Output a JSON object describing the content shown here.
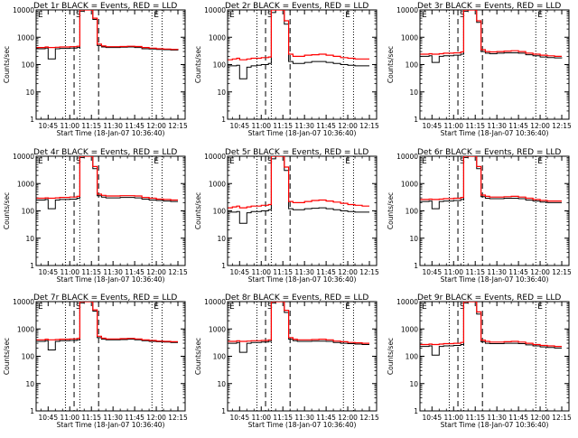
{
  "figure": {
    "ylabel": "Counts/sec",
    "xlabel": "Start Time (18-Jan-07 10:36:40)",
    "x_ticks": [
      "10:45",
      "11:00",
      "11:15",
      "11:30",
      "11:45",
      "12:00",
      "12:15"
    ],
    "y_ticks": [
      "1",
      "10",
      "100",
      "1000",
      "10000"
    ],
    "marker_labels": [
      "S",
      "E"
    ],
    "colors": {
      "events": "#000000",
      "lld": "#ff0000"
    }
  },
  "chart_data": [
    {
      "type": "line",
      "title": "Det 1r BLACK = Events, RED = LLD",
      "xlabel": "Start Time (18-Jan-07 10:36:40)",
      "ylabel": "Counts/sec",
      "ylim": [
        1,
        10000
      ],
      "log_y": true,
      "x": [
        "10:37",
        "10:40",
        "10:43",
        "10:45",
        "10:47",
        "10:50",
        "10:53",
        "10:57",
        "11:00",
        "11:02",
        "11:05",
        "11:07",
        "11:10",
        "11:13",
        "11:16",
        "11:19",
        "11:22",
        "11:25",
        "11:30",
        "11:35",
        "11:40",
        "11:45",
        "11:50",
        "11:55",
        "12:00",
        "12:05",
        "12:10",
        "12:15"
      ],
      "series": [
        {
          "name": "Events",
          "values": [
            380,
            380,
            400,
            160,
            160,
            380,
            390,
            390,
            400,
            400,
            420,
            9000,
            10000,
            10000,
            4500,
            500,
            440,
            420,
            420,
            430,
            440,
            420,
            380,
            370,
            360,
            350,
            340,
            330
          ]
        },
        {
          "name": "LLD",
          "values": [
            420,
            420,
            440,
            420,
            420,
            430,
            440,
            440,
            450,
            450,
            470,
            10000,
            10000,
            10000,
            5000,
            560,
            480,
            450,
            450,
            460,
            470,
            460,
            420,
            400,
            380,
            370,
            360,
            350
          ]
        }
      ],
      "vlines_dotted": [
        "10:57",
        "11:07",
        "11:57",
        "12:04"
      ],
      "vlines_dashed": [
        "11:03",
        "11:20"
      ]
    },
    {
      "type": "line",
      "title": "Det 2r BLACK = Events, RED = LLD",
      "xlabel": "Start Time (18-Jan-07 10:36:40)",
      "ylabel": "Counts/sec",
      "ylim": [
        1,
        10000
      ],
      "log_y": true,
      "x": [
        "10:37",
        "10:40",
        "10:43",
        "10:45",
        "10:47",
        "10:50",
        "10:53",
        "10:57",
        "11:00",
        "11:02",
        "11:05",
        "11:07",
        "11:10",
        "11:13",
        "11:16",
        "11:19",
        "11:22",
        "11:25",
        "11:30",
        "11:35",
        "11:40",
        "11:45",
        "11:50",
        "11:55",
        "12:00",
        "12:05",
        "12:10",
        "12:15"
      ],
      "series": [
        {
          "name": "Events",
          "values": [
            90,
            90,
            95,
            30,
            30,
            80,
            90,
            95,
            100,
            100,
            110,
            8000,
            10000,
            10000,
            3000,
            130,
            110,
            110,
            120,
            130,
            130,
            120,
            110,
            100,
            95,
            90,
            90,
            90
          ]
        },
        {
          "name": "LLD",
          "values": [
            150,
            160,
            170,
            150,
            150,
            160,
            170,
            170,
            180,
            180,
            190,
            10000,
            10000,
            10000,
            4000,
            240,
            200,
            200,
            220,
            230,
            240,
            220,
            200,
            180,
            170,
            160,
            160,
            160
          ]
        }
      ],
      "vlines_dotted": [
        "10:57",
        "11:07",
        "11:57",
        "12:04"
      ],
      "vlines_dashed": [
        "11:03",
        "11:20"
      ]
    },
    {
      "type": "line",
      "title": "Det 3r BLACK = Events, RED = LLD",
      "xlabel": "Start Time (18-Jan-07 10:36:40)",
      "ylabel": "Counts/sec",
      "ylim": [
        1,
        10000
      ],
      "log_y": true,
      "x": [
        "10:37",
        "10:40",
        "10:43",
        "10:45",
        "10:47",
        "10:50",
        "10:53",
        "10:57",
        "11:00",
        "11:02",
        "11:05",
        "11:07",
        "11:10",
        "11:13",
        "11:16",
        "11:19",
        "11:22",
        "11:25",
        "11:30",
        "11:35",
        "11:40",
        "11:45",
        "11:50",
        "11:55",
        "12:00",
        "12:05",
        "12:10",
        "12:15"
      ],
      "series": [
        {
          "name": "Events",
          "values": [
            200,
            200,
            210,
            120,
            120,
            200,
            210,
            210,
            220,
            220,
            240,
            9000,
            10000,
            10000,
            3500,
            300,
            260,
            250,
            260,
            270,
            270,
            260,
            230,
            210,
            190,
            180,
            175,
            170
          ]
        },
        {
          "name": "LLD",
          "values": [
            240,
            240,
            250,
            240,
            240,
            250,
            260,
            260,
            270,
            270,
            290,
            10000,
            10000,
            10000,
            4000,
            350,
            300,
            290,
            300,
            310,
            320,
            300,
            260,
            240,
            220,
            210,
            200,
            200
          ]
        }
      ],
      "vlines_dotted": [
        "10:57",
        "11:07",
        "11:57",
        "12:04"
      ],
      "vlines_dashed": [
        "11:03",
        "11:20"
      ]
    },
    {
      "type": "line",
      "title": "Det 4r BLACK = Events, RED = LLD",
      "xlabel": "Start Time (18-Jan-07 10:36:40)",
      "ylabel": "Counts/sec",
      "ylim": [
        1,
        10000
      ],
      "log_y": true,
      "x": [
        "10:37",
        "10:40",
        "10:43",
        "10:45",
        "10:47",
        "10:50",
        "10:53",
        "10:57",
        "11:00",
        "11:02",
        "11:05",
        "11:07",
        "11:10",
        "11:13",
        "11:16",
        "11:19",
        "11:22",
        "11:25",
        "11:30",
        "11:35",
        "11:40",
        "11:45",
        "11:50",
        "11:55",
        "12:00",
        "12:05",
        "12:10",
        "12:15"
      ],
      "series": [
        {
          "name": "Events",
          "values": [
            250,
            250,
            260,
            120,
            120,
            250,
            260,
            260,
            270,
            270,
            290,
            9000,
            10000,
            10000,
            3500,
            360,
            320,
            300,
            300,
            310,
            310,
            300,
            270,
            250,
            240,
            230,
            220,
            220
          ]
        },
        {
          "name": "LLD",
          "values": [
            290,
            290,
            300,
            290,
            290,
            300,
            310,
            310,
            320,
            320,
            340,
            10000,
            10000,
            10000,
            4200,
            410,
            370,
            350,
            350,
            360,
            360,
            350,
            310,
            290,
            270,
            260,
            250,
            250
          ]
        }
      ],
      "vlines_dotted": [
        "10:57",
        "11:07",
        "11:57",
        "12:04"
      ],
      "vlines_dashed": [
        "11:03",
        "11:20"
      ]
    },
    {
      "type": "line",
      "title": "Det 5r BLACK = Events, RED = LLD",
      "xlabel": "Start Time (18-Jan-07 10:36:40)",
      "ylabel": "Counts/sec",
      "ylim": [
        1,
        10000
      ],
      "log_y": true,
      "x": [
        "10:37",
        "10:40",
        "10:43",
        "10:45",
        "10:47",
        "10:50",
        "10:53",
        "10:57",
        "11:00",
        "11:02",
        "11:05",
        "11:07",
        "11:10",
        "11:13",
        "11:16",
        "11:19",
        "11:22",
        "11:25",
        "11:30",
        "11:35",
        "11:40",
        "11:45",
        "11:50",
        "11:55",
        "12:00",
        "12:05",
        "12:10",
        "12:15"
      ],
      "series": [
        {
          "name": "Events",
          "values": [
            90,
            90,
            95,
            35,
            35,
            85,
            95,
            95,
            100,
            100,
            110,
            8000,
            10000,
            10000,
            3000,
            120,
            110,
            110,
            120,
            125,
            130,
            120,
            110,
            100,
            95,
            90,
            90,
            90
          ]
        },
        {
          "name": "LLD",
          "values": [
            130,
            140,
            150,
            130,
            130,
            140,
            150,
            150,
            160,
            160,
            170,
            10000,
            10000,
            10000,
            4000,
            220,
            200,
            200,
            220,
            240,
            250,
            230,
            210,
            190,
            170,
            160,
            150,
            150
          ]
        }
      ],
      "vlines_dotted": [
        "10:57",
        "11:07",
        "11:57",
        "12:04"
      ],
      "vlines_dashed": [
        "11:03",
        "11:20"
      ]
    },
    {
      "type": "line",
      "title": "Det 6r BLACK = Events, RED = LLD",
      "xlabel": "Start Time (18-Jan-07 10:36:40)",
      "ylabel": "Counts/sec",
      "ylim": [
        1,
        10000
      ],
      "log_y": true,
      "x": [
        "10:37",
        "10:40",
        "10:43",
        "10:45",
        "10:47",
        "10:50",
        "10:53",
        "10:57",
        "11:00",
        "11:02",
        "11:05",
        "11:07",
        "11:10",
        "11:13",
        "11:16",
        "11:19",
        "11:22",
        "11:25",
        "11:30",
        "11:35",
        "11:40",
        "11:45",
        "11:50",
        "11:55",
        "12:00",
        "12:05",
        "12:10",
        "12:15"
      ],
      "series": [
        {
          "name": "Events",
          "values": [
            220,
            220,
            230,
            120,
            120,
            220,
            230,
            230,
            240,
            240,
            260,
            9000,
            10000,
            10000,
            3500,
            330,
            290,
            280,
            280,
            290,
            290,
            280,
            250,
            230,
            210,
            200,
            200,
            200
          ]
        },
        {
          "name": "LLD",
          "values": [
            260,
            260,
            270,
            260,
            260,
            270,
            280,
            280,
            290,
            290,
            310,
            10000,
            10000,
            10000,
            4200,
            380,
            340,
            320,
            320,
            330,
            340,
            320,
            290,
            260,
            240,
            230,
            230,
            230
          ]
        }
      ],
      "vlines_dotted": [
        "10:57",
        "11:07",
        "11:57",
        "12:04"
      ],
      "vlines_dashed": [
        "11:03",
        "11:20"
      ]
    },
    {
      "type": "line",
      "title": "Det 7r BLACK = Events, RED = LLD",
      "xlabel": "Start Time (18-Jan-07 10:36:40)",
      "ylabel": "Counts/sec",
      "ylim": [
        1,
        10000
      ],
      "log_y": true,
      "x": [
        "10:37",
        "10:40",
        "10:43",
        "10:45",
        "10:47",
        "10:50",
        "10:53",
        "10:57",
        "11:00",
        "11:02",
        "11:05",
        "11:07",
        "11:10",
        "11:13",
        "11:16",
        "11:19",
        "11:22",
        "11:25",
        "11:30",
        "11:35",
        "11:40",
        "11:45",
        "11:50",
        "11:55",
        "12:00",
        "12:05",
        "12:10",
        "12:15"
      ],
      "series": [
        {
          "name": "Events",
          "values": [
            350,
            350,
            370,
            170,
            170,
            350,
            370,
            370,
            380,
            380,
            400,
            9000,
            10000,
            10000,
            4500,
            480,
            420,
            400,
            400,
            410,
            420,
            400,
            370,
            350,
            340,
            330,
            320,
            320
          ]
        },
        {
          "name": "LLD",
          "values": [
            400,
            400,
            420,
            400,
            400,
            410,
            420,
            420,
            430,
            430,
            450,
            10000,
            10000,
            10000,
            5000,
            540,
            460,
            430,
            430,
            440,
            450,
            430,
            400,
            380,
            360,
            350,
            340,
            340
          ]
        }
      ],
      "vlines_dotted": [
        "10:57",
        "11:07",
        "11:57",
        "12:04"
      ],
      "vlines_dashed": [
        "11:03",
        "11:20"
      ]
    },
    {
      "type": "line",
      "title": "Det 8r BLACK = Events, RED = LLD",
      "xlabel": "Start Time (18-Jan-07 10:36:40)",
      "ylabel": "Counts/sec",
      "ylim": [
        1,
        10000
      ],
      "log_y": true,
      "x": [
        "10:37",
        "10:40",
        "10:43",
        "10:45",
        "10:47",
        "10:50",
        "10:53",
        "10:57",
        "11:00",
        "11:02",
        "11:05",
        "11:07",
        "11:10",
        "11:13",
        "11:16",
        "11:19",
        "11:22",
        "11:25",
        "11:30",
        "11:35",
        "11:40",
        "11:45",
        "11:50",
        "11:55",
        "12:00",
        "12:05",
        "12:10",
        "12:15"
      ],
      "series": [
        {
          "name": "Events",
          "values": [
            300,
            300,
            320,
            140,
            140,
            300,
            320,
            320,
            330,
            330,
            350,
            9000,
            10000,
            10000,
            4000,
            420,
            370,
            350,
            350,
            360,
            360,
            350,
            320,
            300,
            290,
            280,
            270,
            270
          ]
        },
        {
          "name": "LLD",
          "values": [
            350,
            350,
            370,
            350,
            350,
            360,
            370,
            370,
            380,
            380,
            400,
            10000,
            10000,
            10000,
            4800,
            480,
            420,
            400,
            400,
            410,
            420,
            400,
            360,
            340,
            320,
            310,
            300,
            300
          ]
        }
      ],
      "vlines_dotted": [
        "10:57",
        "11:07",
        "11:57",
        "12:04"
      ],
      "vlines_dashed": [
        "11:03",
        "11:20"
      ]
    },
    {
      "type": "line",
      "title": "Det 9r BLACK = Events, RED = LLD",
      "xlabel": "Start Time (18-Jan-07 10:36:40)",
      "ylabel": "Counts/sec",
      "ylim": [
        1,
        10000
      ],
      "log_y": true,
      "x": [
        "10:37",
        "10:40",
        "10:43",
        "10:45",
        "10:47",
        "10:50",
        "10:53",
        "10:57",
        "11:00",
        "11:02",
        "11:05",
        "11:07",
        "11:10",
        "11:13",
        "11:16",
        "11:19",
        "11:22",
        "11:25",
        "11:30",
        "11:35",
        "11:40",
        "11:45",
        "11:50",
        "11:55",
        "12:00",
        "12:05",
        "12:10",
        "12:15"
      ],
      "series": [
        {
          "name": "Events",
          "values": [
            230,
            230,
            240,
            110,
            110,
            230,
            240,
            240,
            250,
            250,
            270,
            9000,
            10000,
            10000,
            3500,
            340,
            300,
            290,
            290,
            300,
            300,
            290,
            260,
            240,
            220,
            210,
            200,
            200
          ]
        },
        {
          "name": "LLD",
          "values": [
            270,
            270,
            280,
            270,
            270,
            280,
            290,
            290,
            300,
            300,
            320,
            10000,
            10000,
            10000,
            4200,
            390,
            350,
            330,
            330,
            340,
            350,
            330,
            300,
            270,
            250,
            240,
            230,
            230
          ]
        }
      ],
      "vlines_dotted": [
        "10:57",
        "11:07",
        "11:57",
        "12:04"
      ],
      "vlines_dashed": [
        "11:03",
        "11:20"
      ]
    }
  ]
}
